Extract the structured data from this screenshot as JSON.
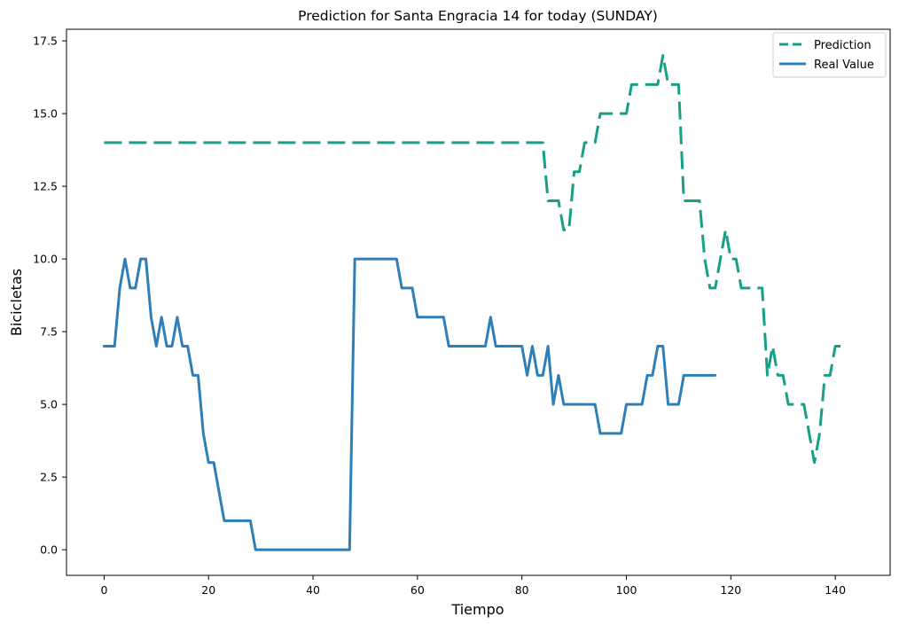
{
  "chart_data": {
    "type": "line",
    "title": "Prediction for Santa Engracia 14 for today (SUNDAY)",
    "xlabel": "Tiempo",
    "ylabel": "Bicicletas",
    "xlim": [
      -7.2,
      150.5
    ],
    "ylim": [
      -0.88,
      17.9
    ],
    "xticks": [
      0,
      20,
      40,
      60,
      80,
      100,
      120,
      140
    ],
    "xtick_labels": [
      "0",
      "20",
      "40",
      "60",
      "80",
      "100",
      "120",
      "140"
    ],
    "yticks": [
      0,
      2.5,
      5,
      7.5,
      10,
      12.5,
      15,
      17.5
    ],
    "ytick_labels": [
      "0.0",
      "2.5",
      "5.0",
      "7.5",
      "10.0",
      "12.5",
      "15.0",
      "17.5"
    ],
    "grid": false,
    "legend_position": "top-right",
    "series": [
      {
        "name": "Prediction",
        "color": "#16a085",
        "style": "dashed",
        "points": [
          [
            0,
            14
          ],
          [
            84,
            14
          ],
          [
            85,
            12
          ],
          [
            87,
            12
          ],
          [
            88,
            11
          ],
          [
            89,
            11
          ],
          [
            90,
            13
          ],
          [
            91,
            13
          ],
          [
            92,
            14
          ],
          [
            94,
            14
          ],
          [
            95,
            15
          ],
          [
            100,
            15
          ],
          [
            101,
            16
          ],
          [
            106,
            16
          ],
          [
            107,
            17
          ],
          [
            108,
            16
          ],
          [
            110,
            16
          ],
          [
            111,
            12
          ],
          [
            114,
            12
          ],
          [
            115,
            10
          ],
          [
            116,
            9
          ],
          [
            117,
            9
          ],
          [
            118,
            10
          ],
          [
            119,
            11
          ],
          [
            120,
            10
          ],
          [
            121,
            10
          ],
          [
            122,
            9
          ],
          [
            125,
            9
          ],
          [
            126,
            9
          ],
          [
            127,
            6
          ],
          [
            128,
            7
          ],
          [
            129,
            6
          ],
          [
            130,
            6
          ],
          [
            131,
            5
          ],
          [
            133,
            5
          ],
          [
            134,
            5
          ],
          [
            135,
            4
          ],
          [
            136,
            3
          ],
          [
            137,
            4
          ],
          [
            138,
            6
          ],
          [
            139,
            6
          ],
          [
            140,
            7
          ],
          [
            141,
            7
          ]
        ]
      },
      {
        "name": "Real Value",
        "color": "#2e7fb8",
        "style": "solid",
        "points": [
          [
            0,
            7
          ],
          [
            2,
            7
          ],
          [
            3,
            9
          ],
          [
            4,
            10
          ],
          [
            5,
            9
          ],
          [
            6,
            9
          ],
          [
            7,
            10
          ],
          [
            8,
            10
          ],
          [
            9,
            8
          ],
          [
            10,
            7
          ],
          [
            11,
            8
          ],
          [
            12,
            7
          ],
          [
            13,
            7
          ],
          [
            14,
            8
          ],
          [
            15,
            7
          ],
          [
            16,
            7
          ],
          [
            17,
            6
          ],
          [
            18,
            6
          ],
          [
            19,
            4
          ],
          [
            20,
            3
          ],
          [
            21,
            3
          ],
          [
            23,
            1
          ],
          [
            28,
            1
          ],
          [
            29,
            0
          ],
          [
            47,
            0
          ],
          [
            48,
            10
          ],
          [
            56,
            10
          ],
          [
            57,
            9
          ],
          [
            59,
            9
          ],
          [
            60,
            8
          ],
          [
            65,
            8
          ],
          [
            66,
            7
          ],
          [
            73,
            7
          ],
          [
            74,
            8
          ],
          [
            75,
            7
          ],
          [
            80,
            7
          ],
          [
            81,
            6
          ],
          [
            82,
            7
          ],
          [
            83,
            6
          ],
          [
            84,
            6
          ],
          [
            85,
            7
          ],
          [
            86,
            5
          ],
          [
            87,
            6
          ],
          [
            88,
            5
          ],
          [
            94,
            5
          ],
          [
            95,
            4
          ],
          [
            99,
            4
          ],
          [
            100,
            5
          ],
          [
            103,
            5
          ],
          [
            104,
            6
          ],
          [
            105,
            6
          ],
          [
            106,
            7
          ],
          [
            107,
            7
          ],
          [
            108,
            5
          ],
          [
            110,
            5
          ],
          [
            111,
            6
          ],
          [
            117,
            6
          ]
        ]
      }
    ]
  }
}
